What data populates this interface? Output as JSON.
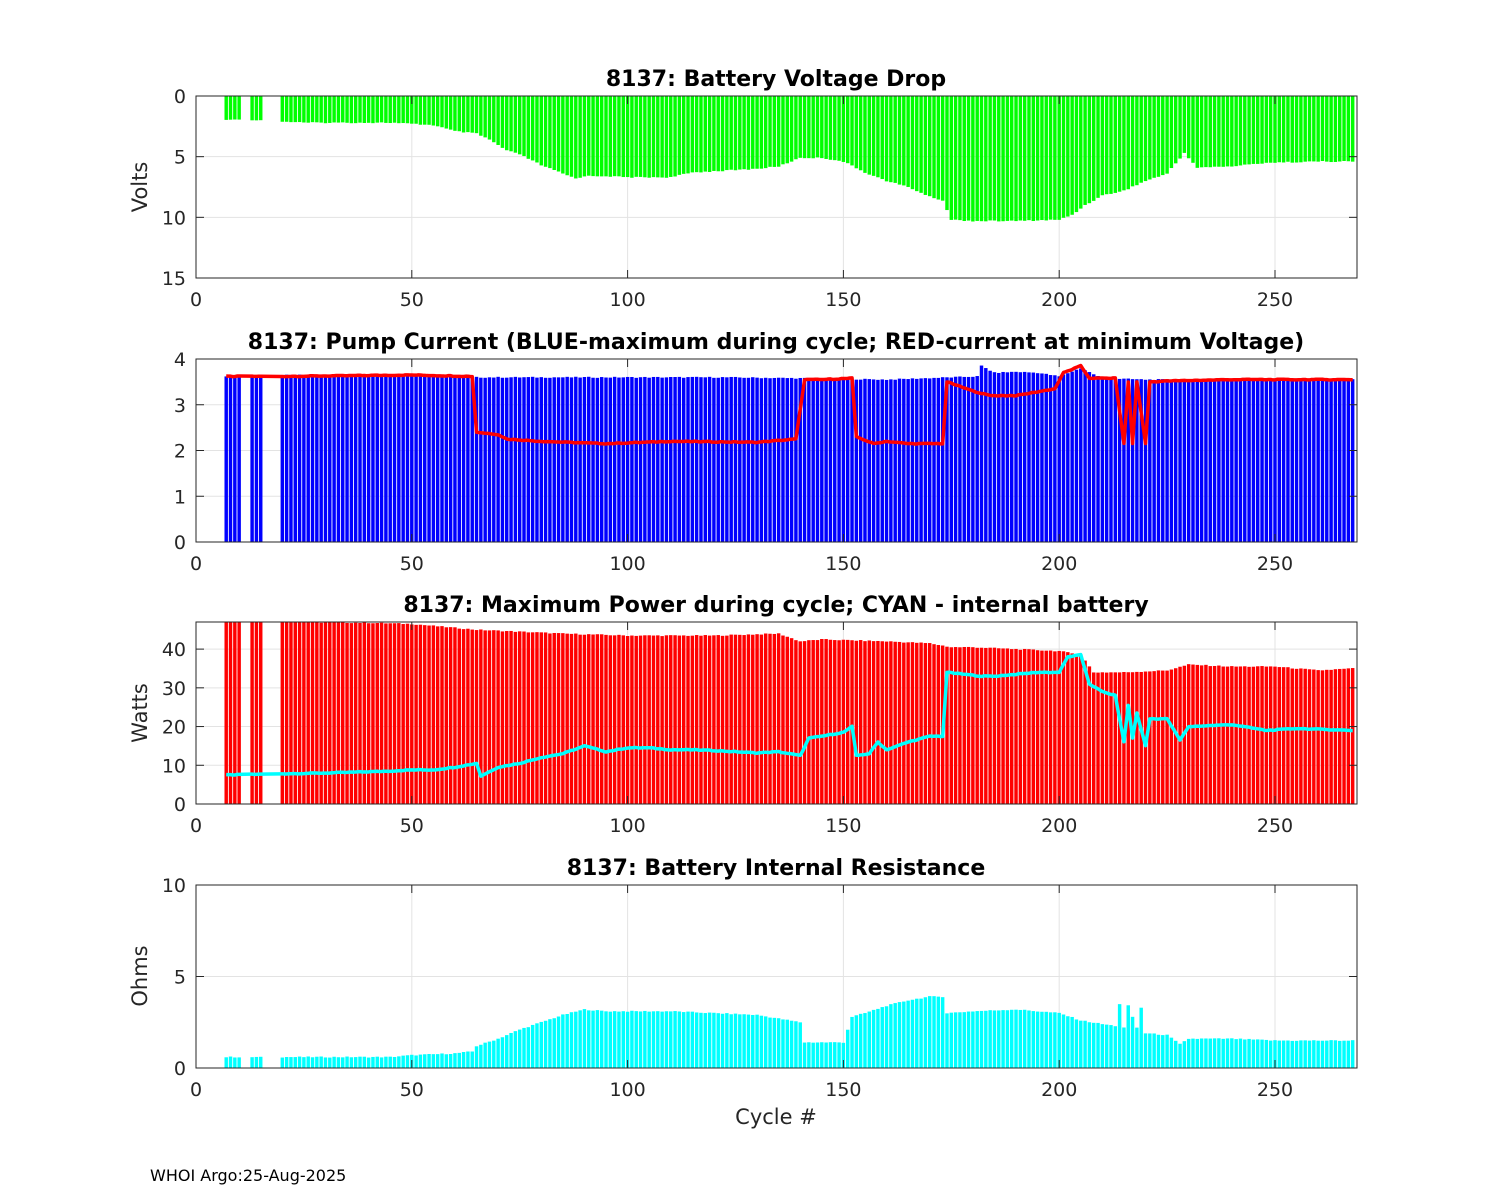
{
  "footer": "WHOI Argo:25-Aug-2025",
  "colors": {
    "green": "#00ff00",
    "blue": "#0000ff",
    "red": "#ff0000",
    "cyan": "#00ffff",
    "grid": "#e3e3e3",
    "axis": "#262626"
  },
  "chart_data": [
    {
      "id": "voltage",
      "type": "bar",
      "title": "8137: Battery Voltage Drop",
      "xlabel": "",
      "ylabel": "Volts",
      "xlim": [
        0,
        269
      ],
      "ylim": [
        0,
        15
      ],
      "yreversed": true,
      "xticks": [
        0,
        50,
        100,
        150,
        200,
        250
      ],
      "yticks": [
        0,
        5,
        10,
        15
      ],
      "grid": true,
      "series": [
        {
          "name": "voltage drop",
          "color": "#00ff00",
          "values": [
            [
              7,
              2
            ],
            [
              10,
              1.9
            ],
            [
              20,
              2.1
            ],
            [
              25,
              2.2
            ],
            [
              35,
              2.2
            ],
            [
              45,
              2.2
            ],
            [
              50,
              2.3
            ],
            [
              55,
              2.4
            ],
            [
              60,
              2.9
            ],
            [
              65,
              3.1
            ],
            [
              68,
              3.6
            ],
            [
              72,
              4.5
            ],
            [
              75,
              4.8
            ],
            [
              80,
              5.7
            ],
            [
              85,
              6.4
            ],
            [
              88,
              6.8
            ],
            [
              90,
              6.6
            ],
            [
              95,
              6.6
            ],
            [
              100,
              6.7
            ],
            [
              110,
              6.7
            ],
            [
              115,
              6.3
            ],
            [
              120,
              6.2
            ],
            [
              130,
              6.0
            ],
            [
              135,
              5.8
            ],
            [
              140,
              5.1
            ],
            [
              145,
              5.1
            ],
            [
              150,
              5.4
            ],
            [
              155,
              6.3
            ],
            [
              160,
              7.0
            ],
            [
              165,
              7.5
            ],
            [
              170,
              8.3
            ],
            [
              173,
              8.6
            ],
            [
              175,
              10.2
            ],
            [
              180,
              10.3
            ],
            [
              190,
              10.3
            ],
            [
              200,
              10.2
            ],
            [
              203,
              9.8
            ],
            [
              206,
              9.0
            ],
            [
              210,
              8.2
            ],
            [
              215,
              7.8
            ],
            [
              220,
              7.0
            ],
            [
              225,
              6.4
            ],
            [
              229,
              4.7
            ],
            [
              232,
              5.9
            ],
            [
              240,
              5.8
            ],
            [
              248,
              5.5
            ],
            [
              260,
              5.4
            ],
            [
              268,
              5.4
            ]
          ]
        }
      ],
      "gaps": [
        [
          11,
          12
        ],
        [
          16,
          19
        ]
      ]
    },
    {
      "id": "current",
      "type": "bar",
      "title": "8137: Pump Current (BLUE-maximum during cycle; RED-current at minimum Voltage)",
      "xlabel": "",
      "ylabel": "",
      "xlim": [
        0,
        269
      ],
      "ylim": [
        0,
        4
      ],
      "xticks": [
        0,
        50,
        100,
        150,
        200,
        250
      ],
      "yticks": [
        0,
        1,
        2,
        3,
        4
      ],
      "grid": true,
      "series": [
        {
          "name": "BLUE-maximum during cycle",
          "color": "#0000ff",
          "kind": "bar",
          "values": [
            [
              7,
              3.62
            ],
            [
              20,
              3.65
            ],
            [
              30,
              3.65
            ],
            [
              50,
              3.65
            ],
            [
              60,
              3.6
            ],
            [
              100,
              3.6
            ],
            [
              122,
              3.6
            ],
            [
              140,
              3.58
            ],
            [
              160,
              3.55
            ],
            [
              181,
              3.62
            ],
            [
              182,
              3.85
            ],
            [
              185,
              3.7
            ],
            [
              190,
              3.72
            ],
            [
              195,
              3.7
            ],
            [
              200,
              3.62
            ],
            [
              205,
              3.8
            ],
            [
              210,
              3.58
            ],
            [
              220,
              3.55
            ],
            [
              240,
              3.55
            ],
            [
              268,
              3.55
            ]
          ]
        },
        {
          "name": "RED-current at minimum Voltage",
          "color": "#ff0000",
          "kind": "line",
          "values": [
            [
              7,
              3.62
            ],
            [
              20,
              3.62
            ],
            [
              30,
              3.63
            ],
            [
              50,
              3.65
            ],
            [
              64,
              3.62
            ],
            [
              65,
              2.4
            ],
            [
              70,
              2.35
            ],
            [
              72,
              2.25
            ],
            [
              80,
              2.2
            ],
            [
              95,
              2.15
            ],
            [
              110,
              2.2
            ],
            [
              130,
              2.18
            ],
            [
              139,
              2.25
            ],
            [
              141,
              3.55
            ],
            [
              145,
              3.55
            ],
            [
              152,
              3.58
            ],
            [
              153,
              2.3
            ],
            [
              157,
              2.15
            ],
            [
              160,
              2.2
            ],
            [
              165,
              2.15
            ],
            [
              173,
              2.15
            ],
            [
              174,
              3.5
            ],
            [
              180,
              3.3
            ],
            [
              184,
              3.2
            ],
            [
              190,
              3.2
            ],
            [
              199,
              3.35
            ],
            [
              201,
              3.7
            ],
            [
              205,
              3.85
            ],
            [
              207,
              3.58
            ],
            [
              213,
              3.58
            ],
            [
              215,
              2.15
            ],
            [
              216,
              3.5
            ],
            [
              217,
              2.15
            ],
            [
              218,
              3.5
            ],
            [
              220,
              2.15
            ],
            [
              221,
              3.5
            ],
            [
              225,
              3.52
            ],
            [
              240,
              3.55
            ],
            [
              268,
              3.55
            ]
          ]
        }
      ],
      "gaps": [
        [
          11,
          12
        ],
        [
          16,
          19
        ]
      ]
    },
    {
      "id": "power",
      "type": "bar",
      "title": "8137: Maximum Power during cycle; CYAN - internal battery",
      "xlabel": "",
      "ylabel": "Watts",
      "xlim": [
        0,
        269
      ],
      "ylim": [
        0,
        47
      ],
      "xticks": [
        0,
        50,
        100,
        150,
        200,
        250
      ],
      "yticks": [
        0,
        10,
        20,
        30,
        40
      ],
      "grid": true,
      "series": [
        {
          "name": "maximum power",
          "color": "#ff0000",
          "kind": "bar",
          "values": [
            [
              7,
              47
            ],
            [
              20,
              47
            ],
            [
              40,
              46.8
            ],
            [
              50,
              46.5
            ],
            [
              60,
              45.5
            ],
            [
              65,
              45
            ],
            [
              75,
              44.5
            ],
            [
              85,
              44
            ],
            [
              100,
              43.5
            ],
            [
              120,
              43.5
            ],
            [
              135,
              44
            ],
            [
              140,
              42
            ],
            [
              145,
              42.5
            ],
            [
              160,
              42
            ],
            [
              170,
              41.5
            ],
            [
              175,
              40.5
            ],
            [
              180,
              40.5
            ],
            [
              190,
              40
            ],
            [
              200,
              39.5
            ],
            [
              205,
              38.5
            ],
            [
              208,
              34
            ],
            [
              215,
              34
            ],
            [
              225,
              34.5
            ],
            [
              230,
              36
            ],
            [
              240,
              35.5
            ],
            [
              250,
              35.5
            ],
            [
              260,
              34.5
            ],
            [
              268,
              35
            ]
          ]
        },
        {
          "name": "CYAN - internal battery",
          "color": "#00ffff",
          "kind": "line",
          "values": [
            [
              7,
              7.5
            ],
            [
              20,
              7.8
            ],
            [
              30,
              8
            ],
            [
              45,
              8.5
            ],
            [
              50,
              8.8
            ],
            [
              55,
              8.8
            ],
            [
              60,
              9.5
            ],
            [
              65,
              10.5
            ],
            [
              66,
              7.2
            ],
            [
              70,
              9.5
            ],
            [
              75,
              10.5
            ],
            [
              80,
              12
            ],
            [
              85,
              13
            ],
            [
              90,
              15
            ],
            [
              95,
              13.5
            ],
            [
              100,
              14.5
            ],
            [
              105,
              14.5
            ],
            [
              110,
              14
            ],
            [
              115,
              14
            ],
            [
              120,
              13.8
            ],
            [
              125,
              13.5
            ],
            [
              130,
              13.2
            ],
            [
              135,
              13.5
            ],
            [
              140,
              12.5
            ],
            [
              142,
              17
            ],
            [
              145,
              17.5
            ],
            [
              150,
              18.5
            ],
            [
              152,
              20
            ],
            [
              153,
              12.5
            ],
            [
              156,
              13
            ],
            [
              158,
              16
            ],
            [
              160,
              14
            ],
            [
              165,
              16
            ],
            [
              170,
              17.5
            ],
            [
              173,
              17.5
            ],
            [
              174,
              34
            ],
            [
              178,
              33.5
            ],
            [
              182,
              33
            ],
            [
              185,
              33
            ],
            [
              190,
              33.5
            ],
            [
              195,
              34
            ],
            [
              200,
              34
            ],
            [
              202,
              38
            ],
            [
              205,
              38.5
            ],
            [
              207,
              31
            ],
            [
              210,
              29
            ],
            [
              213,
              28
            ],
            [
              215,
              16
            ],
            [
              216,
              25.5
            ],
            [
              217,
              17
            ],
            [
              218,
              23.5
            ],
            [
              220,
              15
            ],
            [
              221,
              22
            ],
            [
              225,
              22
            ],
            [
              228,
              16.5
            ],
            [
              230,
              20
            ],
            [
              240,
              20.5
            ],
            [
              248,
              19
            ],
            [
              255,
              19.5
            ],
            [
              268,
              19
            ]
          ]
        }
      ],
      "gaps": [
        [
          11,
          12
        ],
        [
          16,
          19
        ]
      ]
    },
    {
      "id": "resistance",
      "type": "bar",
      "title": "8137: Battery Internal Resistance",
      "xlabel": "Cycle #",
      "ylabel": "Ohms",
      "xlim": [
        0,
        269
      ],
      "ylim": [
        0,
        10
      ],
      "xticks": [
        0,
        50,
        100,
        150,
        200,
        250
      ],
      "yticks": [
        0,
        5,
        10
      ],
      "grid": true,
      "series": [
        {
          "name": "internal resistance",
          "color": "#00ffff",
          "values": [
            [
              7,
              0.6
            ],
            [
              20,
              0.6
            ],
            [
              45,
              0.6
            ],
            [
              50,
              0.7
            ],
            [
              60,
              0.8
            ],
            [
              64,
              0.9
            ],
            [
              65,
              1.2
            ],
            [
              70,
              1.6
            ],
            [
              75,
              2.1
            ],
            [
              80,
              2.5
            ],
            [
              85,
              2.9
            ],
            [
              90,
              3.2
            ],
            [
              95,
              3.1
            ],
            [
              100,
              3.1
            ],
            [
              110,
              3.1
            ],
            [
              120,
              3.0
            ],
            [
              130,
              2.9
            ],
            [
              135,
              2.7
            ],
            [
              140,
              2.5
            ],
            [
              141,
              1.4
            ],
            [
              150,
              1.4
            ],
            [
              152,
              2.8
            ],
            [
              155,
              3.0
            ],
            [
              160,
              3.4
            ],
            [
              165,
              3.7
            ],
            [
              170,
              3.9
            ],
            [
              173,
              3.9
            ],
            [
              174,
              3.0
            ],
            [
              180,
              3.1
            ],
            [
              190,
              3.2
            ],
            [
              200,
              3.0
            ],
            [
              205,
              2.6
            ],
            [
              210,
              2.4
            ],
            [
              213,
              2.3
            ],
            [
              214,
              3.5
            ],
            [
              215,
              2.2
            ],
            [
              216,
              3.4
            ],
            [
              218,
              2.2
            ],
            [
              219,
              3.3
            ],
            [
              220,
              1.9
            ],
            [
              225,
              1.8
            ],
            [
              228,
              1.3
            ],
            [
              230,
              1.6
            ],
            [
              240,
              1.6
            ],
            [
              250,
              1.5
            ],
            [
              268,
              1.5
            ]
          ]
        }
      ],
      "gaps": [
        [
          11,
          12
        ],
        [
          16,
          19
        ]
      ]
    }
  ]
}
